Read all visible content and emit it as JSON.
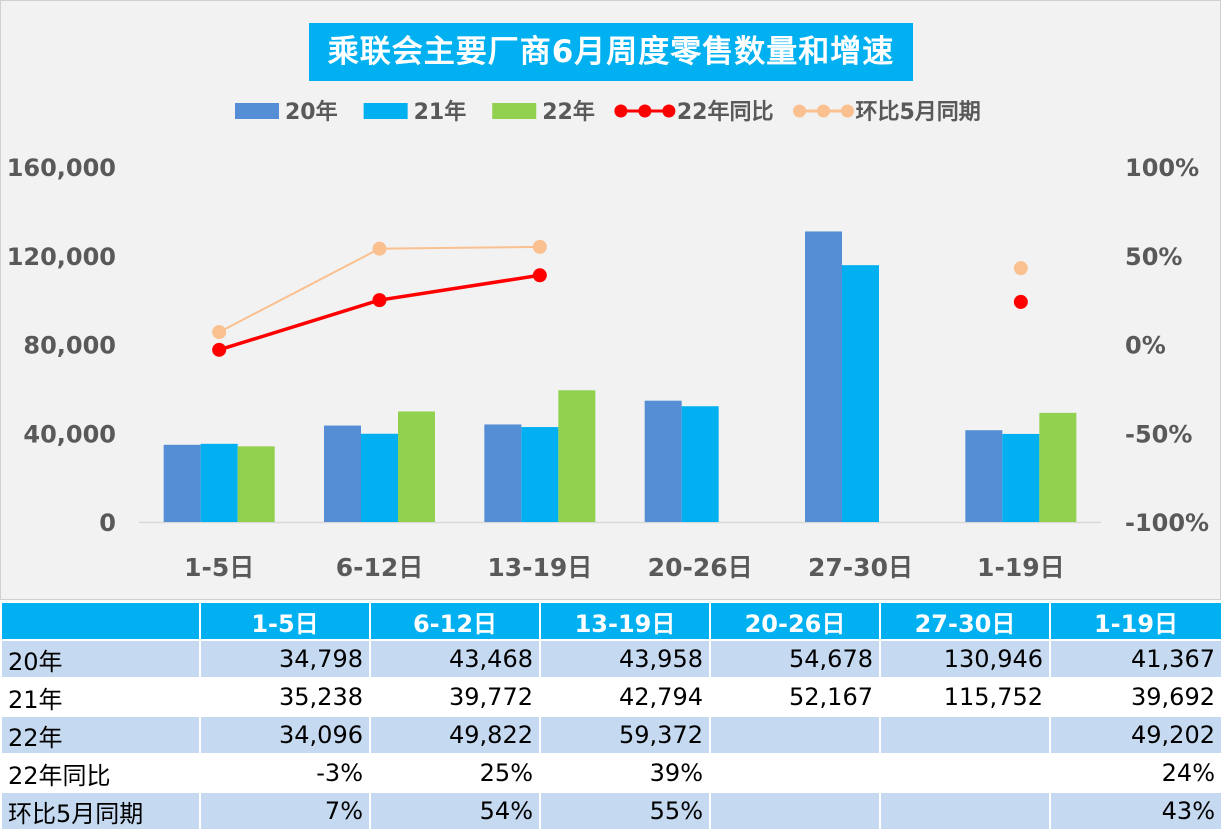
{
  "chart_data": {
    "type": "bar",
    "title": "乘联会主要厂商6月周度零售数量和增速",
    "categories": [
      "1-5日",
      "6-12日",
      "13-19日",
      "20-26日",
      "27-30日",
      "1-19日"
    ],
    "series": [
      {
        "name": "20年",
        "kind": "bar",
        "axis": "left",
        "color": "#558ed5",
        "values": [
          34798,
          43468,
          43958,
          54678,
          130946,
          41367
        ]
      },
      {
        "name": "21年",
        "kind": "bar",
        "axis": "left",
        "color": "#00b0f0",
        "values": [
          35238,
          39772,
          42794,
          52167,
          115752,
          39692
        ]
      },
      {
        "name": "22年",
        "kind": "bar",
        "axis": "left",
        "color": "#92d050",
        "values": [
          34096,
          49822,
          59372,
          null,
          null,
          49202
        ]
      },
      {
        "name": "22年同比",
        "kind": "line",
        "axis": "right",
        "color": "#ff0000",
        "values": [
          -3,
          25,
          39,
          null,
          null,
          24
        ],
        "connected": [
          true,
          true,
          true,
          false,
          false,
          false
        ]
      },
      {
        "name": "环比5月同期",
        "kind": "line",
        "axis": "right",
        "color": "#fac090",
        "values": [
          7,
          54,
          55,
          null,
          null,
          43
        ],
        "connected": [
          true,
          true,
          true,
          false,
          false,
          false
        ]
      }
    ],
    "y_left": {
      "ticks": [
        "160,000",
        "120,000",
        "80,000",
        "40,000",
        "0"
      ],
      "lim": [
        0,
        160000
      ]
    },
    "y_right": {
      "ticks": [
        "100%",
        "50%",
        "0%",
        "-50%",
        "-100%"
      ],
      "lim": [
        -100,
        100
      ]
    },
    "legend_position": "top",
    "grid": false
  },
  "table": {
    "headers": [
      "",
      "1-5日",
      "6-12日",
      "13-19日",
      "20-26日",
      "27-30日",
      "1-19日"
    ],
    "rows": [
      {
        "label": "20年",
        "cells": [
          "34,798",
          "43,468",
          "43,958",
          "54,678",
          "130,946",
          "41,367"
        ]
      },
      {
        "label": "21年",
        "cells": [
          "35,238",
          "39,772",
          "42,794",
          "52,167",
          "115,752",
          "39,692"
        ]
      },
      {
        "label": "22年",
        "cells": [
          "34,096",
          "49,822",
          "59,372",
          "",
          "",
          "49,202"
        ]
      },
      {
        "label": "22年同比",
        "cells": [
          "-3%",
          "25%",
          "39%",
          "",
          "",
          "24%"
        ]
      },
      {
        "label": "环比5月同期",
        "cells": [
          "7%",
          "54%",
          "55%",
          "",
          "",
          "43%"
        ]
      }
    ]
  }
}
